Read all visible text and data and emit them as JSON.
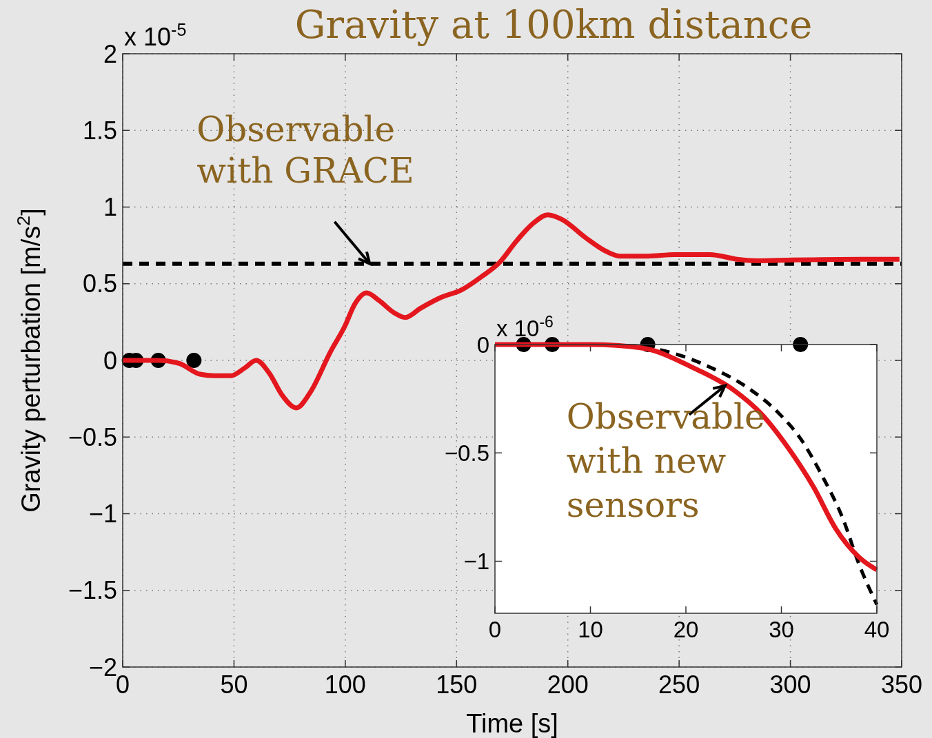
{
  "chart_data": [
    {
      "type": "line",
      "title": "Gravity at 100km distance",
      "xlabel": "Time [s]",
      "ylabel": "Gravity perturbation [m/s$^{2}$]",
      "xlim": [
        0,
        350
      ],
      "xticks": [
        0,
        50,
        100,
        150,
        200,
        250,
        300,
        350
      ],
      "ylim": [
        -2,
        2
      ],
      "yticks": [
        {
          "value": -2,
          "label": "−2"
        },
        {
          "value": -1.5,
          "label": "−1.5"
        },
        {
          "value": -1,
          "label": "−1"
        },
        {
          "value": -0.5,
          "label": "−0.5"
        },
        0,
        0.5,
        1,
        1.5,
        2
      ],
      "grid": true,
      "series": [
        {
          "color": "#e3171d",
          "x": [
            0,
            16,
            25.4,
            34.7,
            40.9,
            48.6,
            54.8,
            60,
            65.7,
            71.8,
            78,
            84.2,
            93.5,
            99.7,
            104.4,
            109.6,
            115.2,
            122,
            127,
            133.8,
            142.9,
            152.3,
            161.6,
            169.4,
            177,
            184.9,
            191,
            197.3,
            208,
            217.4,
            223.5,
            236,
            248,
            263.8,
            276,
            285.5,
            301,
            332,
            349
          ],
          "values": [
            0,
            0,
            -0.02,
            -0.09,
            -0.1,
            -0.1,
            -0.05,
            0,
            -0.08,
            -0.23,
            -0.31,
            -0.21,
            0.06,
            0.22,
            0.37,
            0.44,
            0.39,
            0.31,
            0.28,
            0.34,
            0.41,
            0.46,
            0.55,
            0.64,
            0.78,
            0.9,
            0.95,
            0.92,
            0.8,
            0.71,
            0.68,
            0.68,
            0.69,
            0.69,
            0.66,
            0.65,
            0.655,
            0.66,
            0.66
          ]
        },
        {
          "type": "scatter",
          "color": "#000000",
          "marker": "circle",
          "x": [
            3,
            6,
            16,
            32
          ],
          "values": [
            0,
            0,
            0,
            0
          ]
        }
      ],
      "ref_lines": [
        {
          "axis": "y",
          "value": 0.63,
          "color": "#000000",
          "line_style": "dashed"
        }
      ],
      "annotations": [
        "x 10$^{-5}$",
        {
          "text": "Observable with GRACE",
          "x": 111,
          "y": 0.63
        }
      ]
    },
    {
      "type": "line",
      "xlim": [
        0,
        40
      ],
      "xticks": [
        0,
        10,
        20,
        30,
        40
      ],
      "ylim": [
        -1.24,
        0
      ],
      "yticks": [
        {
          "value": -1,
          "label": "−1"
        },
        {
          "value": -0.5,
          "label": "−0.5"
        },
        0
      ],
      "series": [
        {
          "color": "#000000",
          "line_style": "dashed",
          "x": [
            0,
            10,
            14,
            16.8,
            22.3,
            26.5,
            29.8,
            32.1,
            34.2,
            36.5,
            38.1,
            40
          ],
          "values": [
            0,
            0,
            -0.005,
            -0.02,
            -0.1,
            -0.2,
            -0.32,
            -0.44,
            -0.6,
            -0.81,
            -1.01,
            -1.2
          ]
        },
        {
          "color": "#e3171d",
          "x": [
            0,
            10,
            15.4,
            20.9,
            25,
            27.9,
            30.6,
            33.4,
            35.7,
            38.1,
            40
          ],
          "values": [
            0,
            0,
            -0.016,
            -0.11,
            -0.21,
            -0.32,
            -0.47,
            -0.66,
            -0.85,
            -0.98,
            -1.04
          ]
        },
        {
          "type": "scatter",
          "color": "#000000",
          "marker": "circle",
          "x": [
            3,
            6,
            16,
            32
          ],
          "values": [
            0,
            0,
            0,
            0
          ]
        }
      ],
      "annotations": [
        "x 10$^{-6}$",
        {
          "text": "Observable with new sensors",
          "x": 24.1,
          "y": -0.19
        }
      ]
    }
  ]
}
